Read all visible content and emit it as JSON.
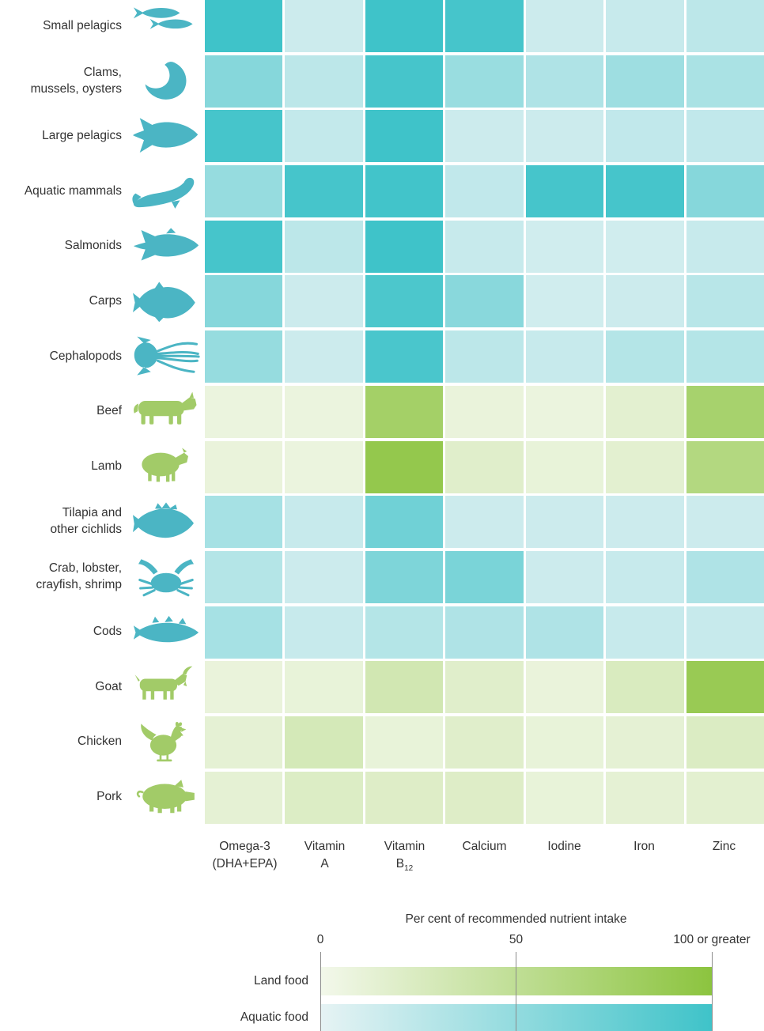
{
  "chart_data": {
    "type": "heatmap",
    "title": "",
    "columns": [
      "Omega-3 (DHA+EPA)",
      "Vitamin A",
      "Vitamin B12",
      "Calcium",
      "Iodine",
      "Iron",
      "Zinc"
    ],
    "columns_display": [
      {
        "lines": [
          "Omega-3",
          "(DHA+EPA)"
        ]
      },
      {
        "lines": [
          "Vitamin",
          "A"
        ]
      },
      {
        "lines": [
          "Vitamin",
          "B"
        ],
        "sub": "12"
      },
      {
        "lines": [
          "Calcium"
        ]
      },
      {
        "lines": [
          "Iodine"
        ]
      },
      {
        "lines": [
          "Iron"
        ]
      },
      {
        "lines": [
          "Zinc"
        ]
      }
    ],
    "value_unit": "per cent of recommended nutrient intake",
    "value_range": [
      0,
      100
    ],
    "rows": [
      {
        "name": "Small pelagics",
        "label": "Small pelagics",
        "icon": "small-pelagics-icon",
        "group": "aquatic",
        "values": [
          100,
          10,
          100,
          95,
          10,
          12,
          18
        ]
      },
      {
        "name": "Clams, mussels, oysters",
        "label": "Clams,\nmussels, oysters",
        "icon": "clams-icon",
        "group": "aquatic",
        "values": [
          50,
          18,
          95,
          38,
          25,
          35,
          28
        ]
      },
      {
        "name": "Large pelagics",
        "label": "Large pelagics",
        "icon": "large-pelagics-icon",
        "group": "aquatic",
        "values": [
          95,
          14,
          100,
          10,
          10,
          15,
          15
        ]
      },
      {
        "name": "Aquatic mammals",
        "label": "Aquatic mammals",
        "icon": "seal-icon",
        "group": "aquatic",
        "values": [
          40,
          95,
          98,
          15,
          95,
          95,
          50
        ]
      },
      {
        "name": "Salmonids",
        "label": "Salmonids",
        "icon": "salmonids-icon",
        "group": "aquatic",
        "values": [
          95,
          18,
          100,
          12,
          8,
          8,
          12
        ]
      },
      {
        "name": "Carps",
        "label": "Carps",
        "icon": "carps-icon",
        "group": "aquatic",
        "values": [
          50,
          10,
          90,
          48,
          8,
          10,
          20
        ]
      },
      {
        "name": "Cephalopods",
        "label": "Cephalopods",
        "icon": "squid-icon",
        "group": "aquatic",
        "values": [
          40,
          10,
          92,
          18,
          12,
          22,
          22
        ]
      },
      {
        "name": "Beef",
        "label": "Beef",
        "icon": "cow-icon",
        "group": "land",
        "values": [
          4,
          4,
          72,
          5,
          4,
          10,
          68
        ]
      },
      {
        "name": "Lamb",
        "label": "Lamb",
        "icon": "sheep-icon",
        "group": "land",
        "values": [
          5,
          4,
          90,
          12,
          6,
          10,
          55
        ]
      },
      {
        "name": "Tilapia and other cichlids",
        "label": "Tilapia and\nother cichlids",
        "icon": "tilapia-icon",
        "group": "aquatic",
        "values": [
          30,
          12,
          65,
          10,
          10,
          10,
          10
        ]
      },
      {
        "name": "Crab, lobster, crayfish, shrimp",
        "label": "Crab, lobster,\ncrayfish, shrimp",
        "icon": "crab-icon",
        "group": "aquatic",
        "values": [
          22,
          10,
          55,
          58,
          10,
          12,
          25
        ]
      },
      {
        "name": "Cods",
        "label": "Cods",
        "icon": "cod-icon",
        "group": "aquatic",
        "values": [
          30,
          12,
          22,
          25,
          25,
          12,
          12
        ]
      },
      {
        "name": "Goat",
        "label": "Goat",
        "icon": "goat-icon",
        "group": "land",
        "values": [
          5,
          6,
          25,
          12,
          5,
          18,
          85
        ]
      },
      {
        "name": "Chicken",
        "label": "Chicken",
        "icon": "rooster-icon",
        "group": "land",
        "values": [
          8,
          22,
          6,
          12,
          6,
          8,
          16
        ]
      },
      {
        "name": "Pork",
        "label": "Pork",
        "icon": "pig-icon",
        "group": "land",
        "values": [
          8,
          15,
          14,
          14,
          6,
          8,
          10
        ]
      }
    ],
    "legend": {
      "title": "Per cent of recommended nutrient intake",
      "ticks": [
        {
          "label": "0",
          "value": 0
        },
        {
          "label": "50",
          "value": 50
        },
        {
          "label": "100 or greater",
          "value": 100
        }
      ],
      "bars": [
        {
          "label": "Land food",
          "scale": "land"
        },
        {
          "label": "Aquatic food",
          "scale": "aquatic"
        }
      ]
    }
  },
  "colors": {
    "aquatic_low": "#e6f3f4",
    "aquatic_high": "#3fc3c9",
    "land_low": "#f3f8eb",
    "land_high": "#8cc43f",
    "aquatic_icon": "#4bb5c4",
    "land_icon": "#a2cb68",
    "tick_line": "#8c8c8c",
    "text": "#333333"
  }
}
